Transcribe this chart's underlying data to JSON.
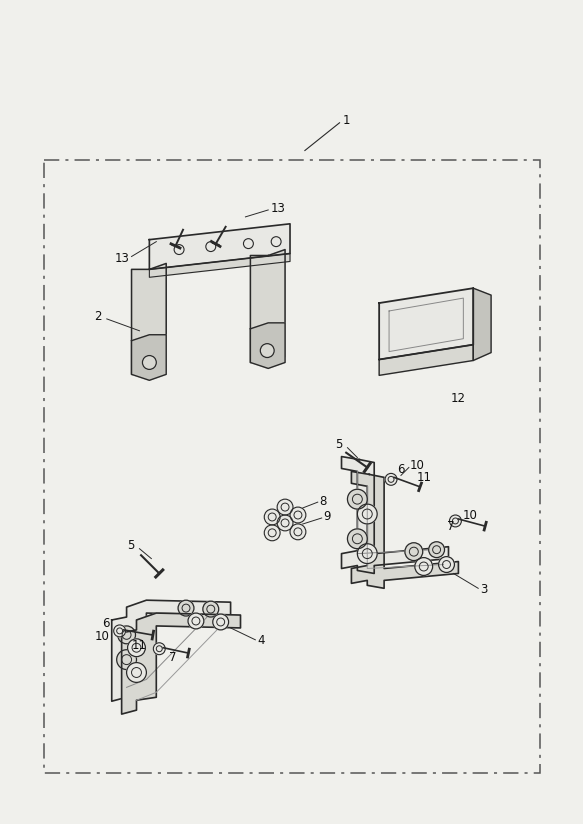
{
  "bg_color": "#f0f0ec",
  "line_color": "#2a2a2a",
  "text_color": "#111111",
  "fill_light": "#e8e8e4",
  "fill_mid": "#d8d8d2",
  "fill_dark": "#c4c4be",
  "label_1": "1",
  "label_2": "2",
  "label_3": "3",
  "label_4": "4",
  "label_5": "5",
  "label_6": "6",
  "label_7": "7",
  "label_8": "8",
  "label_9": "9",
  "label_10": "10",
  "label_11": "11",
  "label_12": "12",
  "label_13": "13"
}
